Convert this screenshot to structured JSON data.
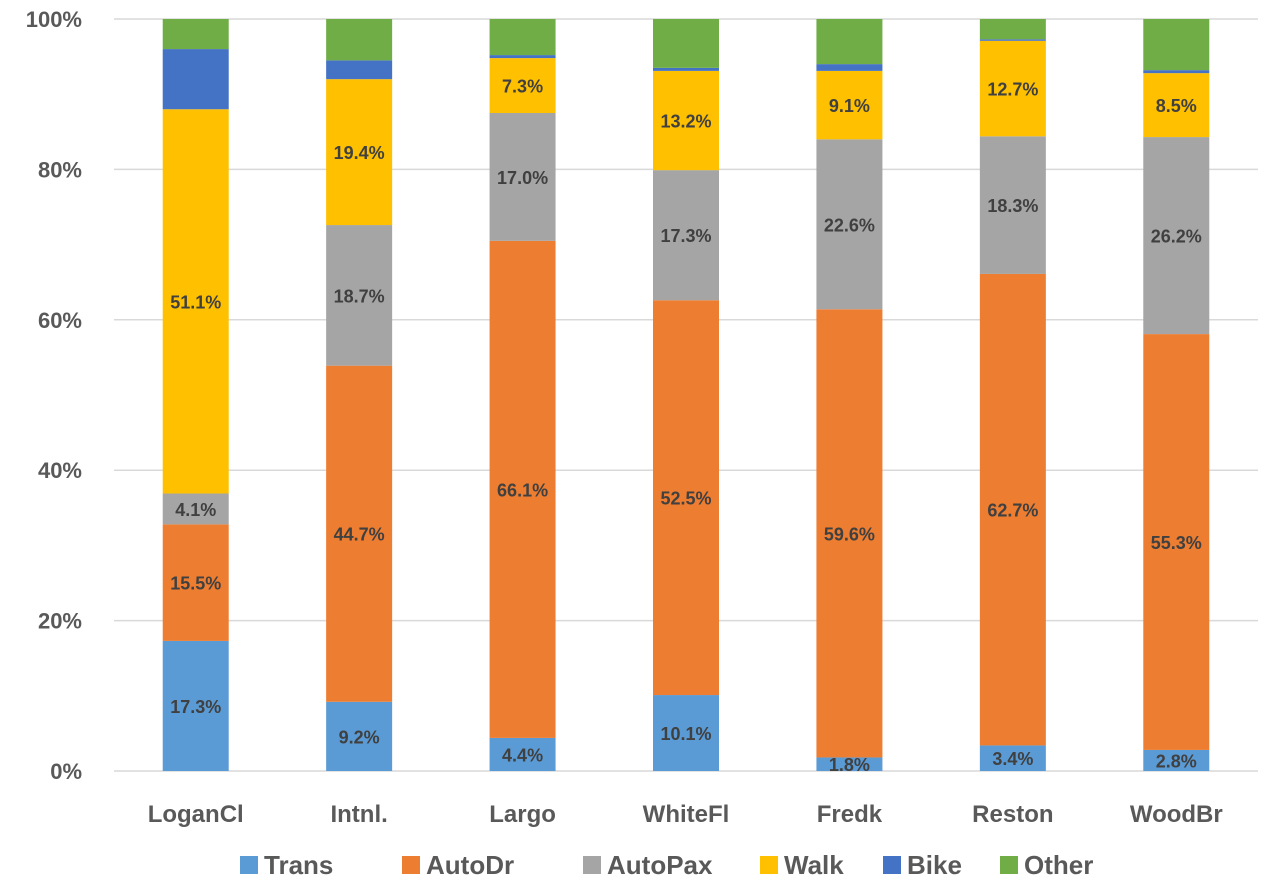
{
  "chart_data": {
    "type": "bar",
    "stacked": true,
    "percent_stacked": true,
    "categories": [
      "LoganCl",
      "Intnl.",
      "Largo",
      "WhiteFl",
      "Fredk",
      "Reston",
      "WoodBr"
    ],
    "series": [
      {
        "name": "Trans",
        "color": "#5B9BD5",
        "values": [
          17.3,
          9.2,
          4.4,
          10.1,
          1.8,
          3.4,
          2.8
        ],
        "labels": [
          "17.3%",
          "9.2%",
          "4.4%",
          "10.1%",
          "1.8%",
          "3.4%",
          "2.8%"
        ]
      },
      {
        "name": "AutoDr",
        "color": "#ED7D31",
        "values": [
          15.5,
          44.7,
          66.1,
          52.5,
          59.6,
          62.7,
          55.3
        ],
        "labels": [
          "15.5%",
          "44.7%",
          "66.1%",
          "52.5%",
          "59.6%",
          "62.7%",
          "55.3%"
        ]
      },
      {
        "name": "AutoPax",
        "color": "#A5A5A5",
        "values": [
          4.1,
          18.7,
          17.0,
          17.3,
          22.6,
          18.3,
          26.2
        ],
        "labels": [
          "4.1%",
          "18.7%",
          "17.0%",
          "17.3%",
          "22.6%",
          "18.3%",
          "26.2%"
        ]
      },
      {
        "name": "Walk",
        "color": "#FFC000",
        "values": [
          51.1,
          19.4,
          7.3,
          13.2,
          9.1,
          12.7,
          8.5
        ],
        "labels": [
          "51.1%",
          "19.4%",
          "7.3%",
          "13.2%",
          "9.1%",
          "12.7%",
          "8.5%"
        ]
      },
      {
        "name": "Bike",
        "color": "#4472C4",
        "values": [
          8.0,
          2.5,
          0.4,
          0.4,
          0.9,
          0.2,
          0.4
        ],
        "labels": [
          "",
          "",
          "",
          "",
          "",
          "",
          ""
        ]
      },
      {
        "name": "Other",
        "color": "#70AD47",
        "values": [
          4.0,
          5.5,
          4.8,
          6.5,
          6.0,
          2.7,
          6.8
        ],
        "labels": [
          "",
          "",
          "",
          "",
          "",
          "",
          ""
        ]
      }
    ],
    "y_ticks": [
      "0%",
      "20%",
      "40%",
      "60%",
      "80%",
      "100%"
    ],
    "ylim": [
      0,
      100
    ],
    "grid": true,
    "legend": "bottom"
  }
}
